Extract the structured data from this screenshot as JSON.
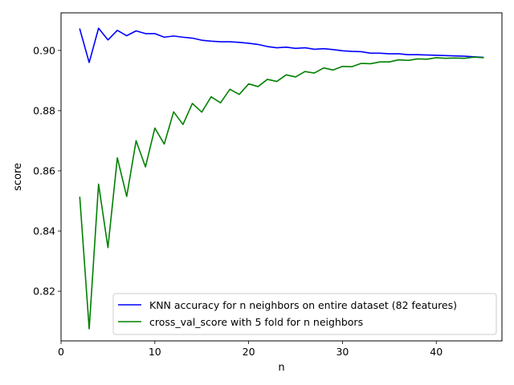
{
  "chart_data": {
    "type": "line",
    "title": "",
    "xlabel": "n",
    "ylabel": "score",
    "xlim": [
      0,
      47
    ],
    "ylim": [
      0.8035,
      0.9125
    ],
    "xticks": [
      0,
      10,
      20,
      30,
      40
    ],
    "yticks": [
      0.82,
      0.84,
      0.86,
      0.88,
      0.9
    ],
    "ytick_labels": [
      "0.82",
      "0.84",
      "0.86",
      "0.88",
      "0.90"
    ],
    "grid": false,
    "legend_position": "lower-right",
    "x": [
      2,
      3,
      4,
      5,
      6,
      7,
      8,
      9,
      10,
      11,
      12,
      13,
      14,
      15,
      16,
      17,
      18,
      19,
      20,
      21,
      22,
      23,
      24,
      25,
      26,
      27,
      28,
      29,
      30,
      31,
      32,
      33,
      34,
      35,
      36,
      37,
      38,
      39,
      40,
      41,
      42,
      43,
      44,
      45
    ],
    "series": [
      {
        "name": "KNN accuracy for n neighbors on entire dataset (82 features)",
        "color": "#0000ff",
        "values": [
          0.9071,
          0.896,
          0.9074,
          0.9035,
          0.9067,
          0.9049,
          0.9065,
          0.9056,
          0.9056,
          0.9044,
          0.9048,
          0.9044,
          0.9041,
          0.9034,
          0.9031,
          0.9029,
          0.9029,
          0.9027,
          0.9024,
          0.902,
          0.9013,
          0.9009,
          0.9011,
          0.9007,
          0.9009,
          0.9004,
          0.9006,
          0.9003,
          0.8999,
          0.8997,
          0.8996,
          0.8991,
          0.8991,
          0.8989,
          0.8989,
          0.8986,
          0.8986,
          0.8985,
          0.8984,
          0.8983,
          0.8982,
          0.8981,
          0.8979,
          0.8977
        ]
      },
      {
        "name": "cross_val_score with 5 fold for n neighbors",
        "color": "#008000",
        "values": [
          0.8512,
          0.8075,
          0.8556,
          0.8345,
          0.8643,
          0.8515,
          0.87,
          0.8613,
          0.8742,
          0.8689,
          0.8796,
          0.8754,
          0.8824,
          0.8795,
          0.8846,
          0.8826,
          0.8871,
          0.8854,
          0.8889,
          0.888,
          0.8904,
          0.8897,
          0.8919,
          0.8912,
          0.893,
          0.8925,
          0.8942,
          0.8935,
          0.8947,
          0.8946,
          0.8957,
          0.8956,
          0.8962,
          0.8962,
          0.8969,
          0.8967,
          0.8972,
          0.8971,
          0.8976,
          0.8974,
          0.8975,
          0.8974,
          0.8978,
          0.8976
        ]
      }
    ]
  }
}
